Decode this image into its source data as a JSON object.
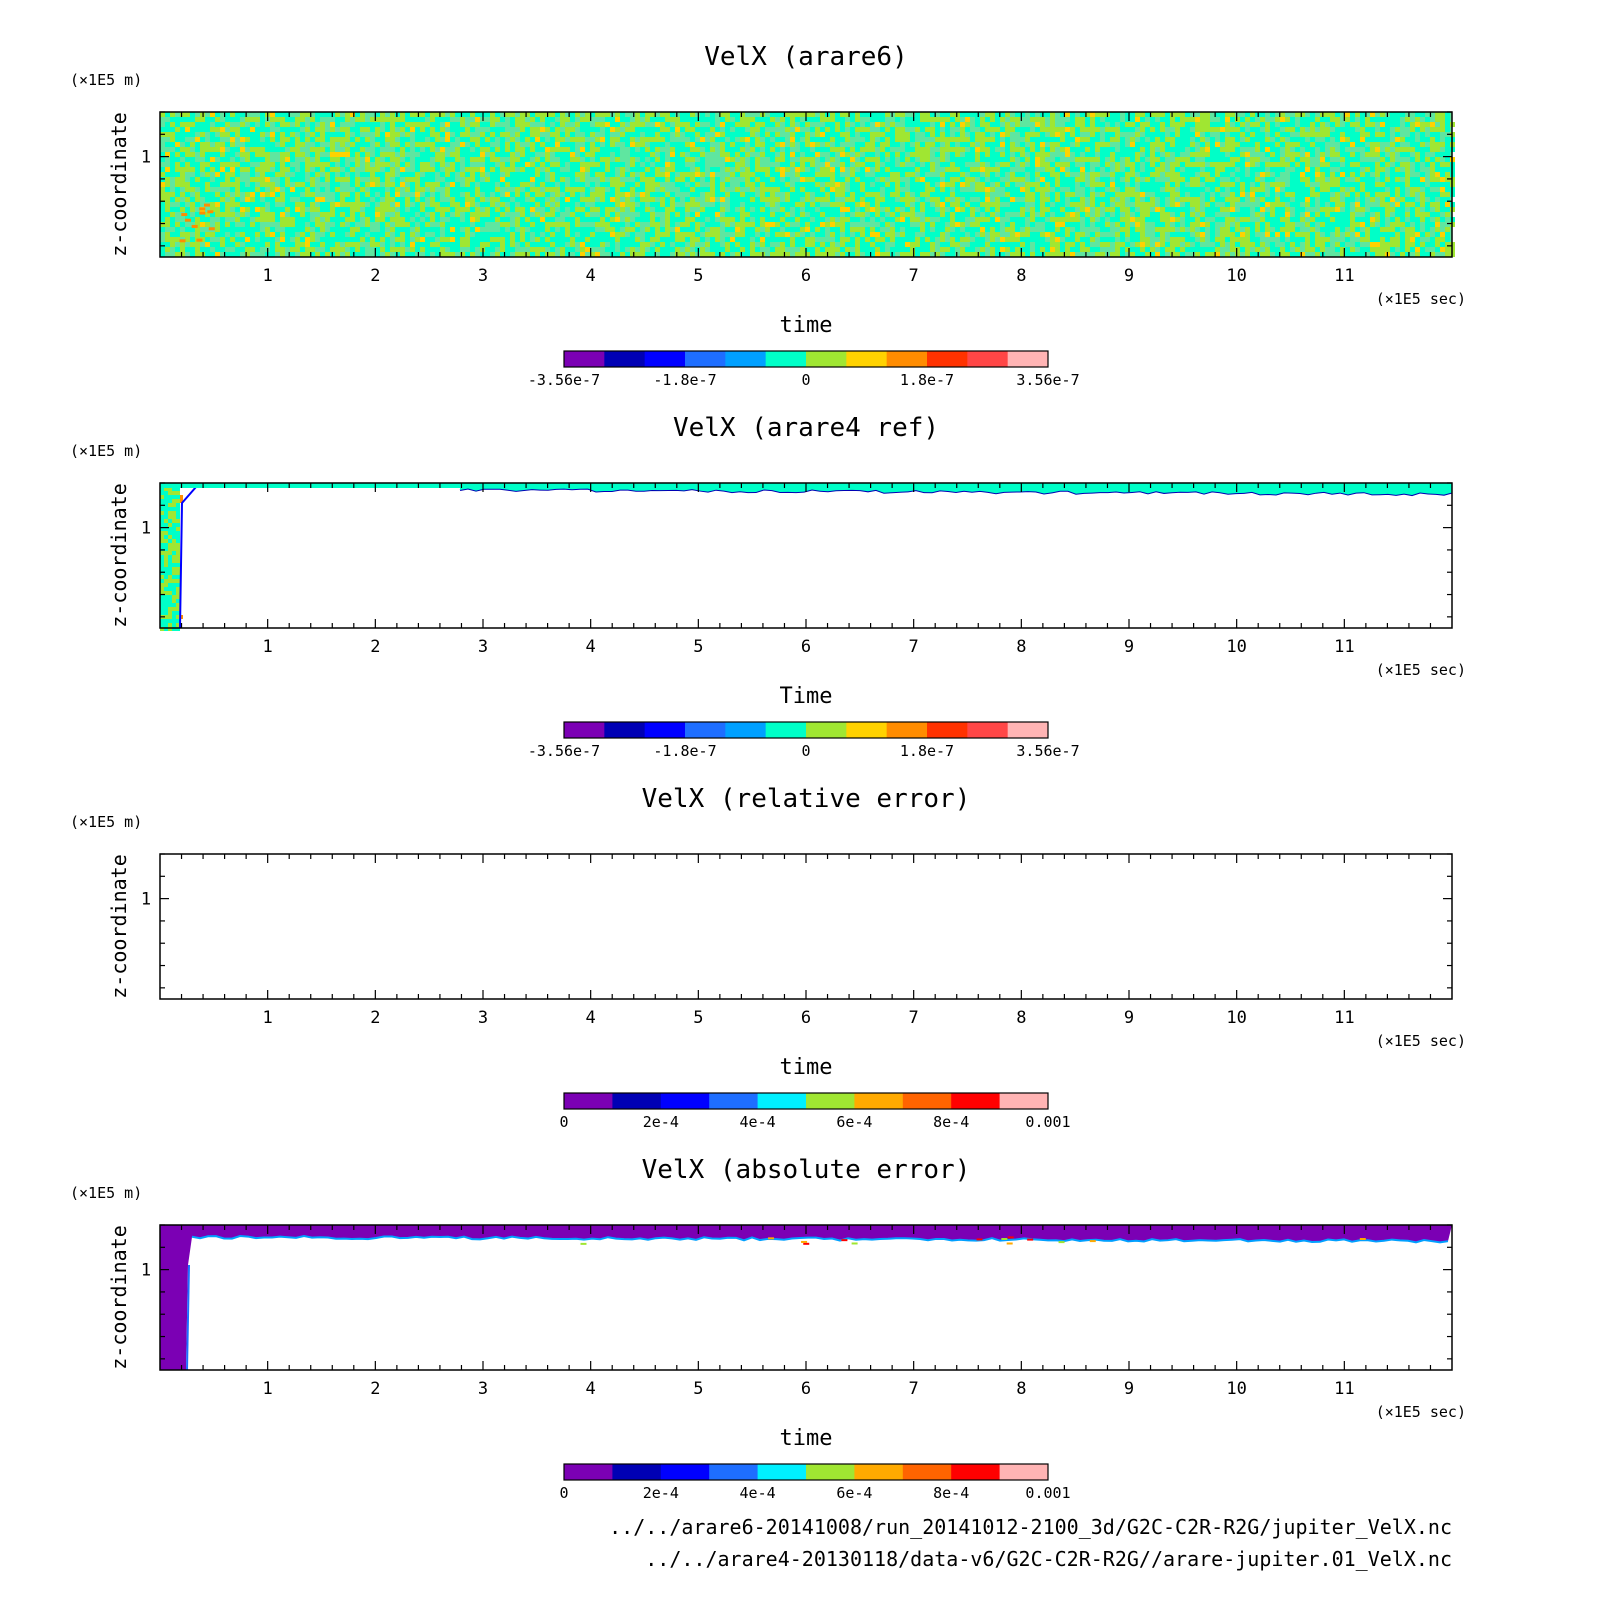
{
  "chart_data": [
    {
      "type": "heatmap",
      "title": "VelX (arare6)",
      "ylabel": "z-coordinate",
      "y_unit": "(×1E5 m)",
      "xlabel": "time",
      "x_unit": "(×1E5 sec)",
      "xlim": [
        0,
        12
      ],
      "ylim": [
        0.55,
        1.2
      ],
      "x_ticks": [
        "1",
        "2",
        "3",
        "4",
        "5",
        "6",
        "7",
        "8",
        "9",
        "10",
        "11"
      ],
      "y_ticks": [
        "1"
      ],
      "field": "noise",
      "colorbar": {
        "colors": [
          "#7b00b4",
          "#0000b4",
          "#0000ff",
          "#1e6eff",
          "#00a0ff",
          "#00ffc8",
          "#a0e632",
          "#ffd200",
          "#ff8c00",
          "#ff3200",
          "#ff4646",
          "#ffb4b4"
        ],
        "labels": [
          "-3.56e-7",
          "-1.8e-7",
          "0",
          "1.8e-7",
          "3.56e-7"
        ]
      }
    },
    {
      "type": "heatmap",
      "title": "VelX (arare4 ref)",
      "ylabel": "z-coordinate",
      "y_unit": "(×1E5 m)",
      "xlabel": "Time",
      "x_unit": "(×1E5 sec)",
      "xlim": [
        0,
        12
      ],
      "ylim": [
        0.55,
        1.2
      ],
      "x_ticks": [
        "1",
        "2",
        "3",
        "4",
        "5",
        "6",
        "7",
        "8",
        "9",
        "10",
        "11"
      ],
      "y_ticks": [
        "1"
      ],
      "field": "strip",
      "colorbar": {
        "colors": [
          "#7b00b4",
          "#0000b4",
          "#0000ff",
          "#1e6eff",
          "#00a0ff",
          "#00ffc8",
          "#a0e632",
          "#ffd200",
          "#ff8c00",
          "#ff3200",
          "#ff4646",
          "#ffb4b4"
        ],
        "labels": [
          "-3.56e-7",
          "-1.8e-7",
          "0",
          "1.8e-7",
          "3.56e-7"
        ]
      }
    },
    {
      "type": "heatmap",
      "title": "VelX (relative error)",
      "ylabel": "z-coordinate",
      "y_unit": "(×1E5 m)",
      "xlabel": "time",
      "x_unit": "(×1E5 sec)",
      "xlim": [
        0,
        12
      ],
      "ylim": [
        0.55,
        1.2
      ],
      "x_ticks": [
        "1",
        "2",
        "3",
        "4",
        "5",
        "6",
        "7",
        "8",
        "9",
        "10",
        "11"
      ],
      "y_ticks": [
        "1"
      ],
      "field": "empty",
      "colorbar": {
        "colors": [
          "#7b00b4",
          "#0000b4",
          "#0000ff",
          "#1e6eff",
          "#00f0ff",
          "#a0e632",
          "#ffaa00",
          "#ff6400",
          "#ff0000",
          "#ffb4b4"
        ],
        "labels": [
          "0",
          "2e-4",
          "4e-4",
          "6e-4",
          "8e-4",
          "0.001"
        ]
      }
    },
    {
      "type": "heatmap",
      "title": "VelX (absolute error)",
      "ylabel": "z-coordinate",
      "y_unit": "(×1E5 m)",
      "xlabel": "time",
      "x_unit": "(×1E5 sec)",
      "xlim": [
        0,
        12
      ],
      "ylim": [
        0.55,
        1.2
      ],
      "x_ticks": [
        "1",
        "2",
        "3",
        "4",
        "5",
        "6",
        "7",
        "8",
        "9",
        "10",
        "11"
      ],
      "y_ticks": [
        "1"
      ],
      "field": "abs",
      "colorbar": {
        "colors": [
          "#7b00b4",
          "#0000b4",
          "#0000ff",
          "#1e6eff",
          "#00f0ff",
          "#a0e632",
          "#ffaa00",
          "#ff6400",
          "#ff0000",
          "#ffb4b4"
        ],
        "labels": [
          "0",
          "2e-4",
          "4e-4",
          "6e-4",
          "8e-4",
          "0.001"
        ]
      }
    }
  ],
  "footer": {
    "file1": "../../arare6-20141008/run_20141012-2100_3d/G2C-C2R-R2G/jupiter_VelX.nc",
    "file2": "../../arare4-20130118/data-v6/G2C-C2R-R2G//arare-jupiter.01_VelX.nc"
  }
}
